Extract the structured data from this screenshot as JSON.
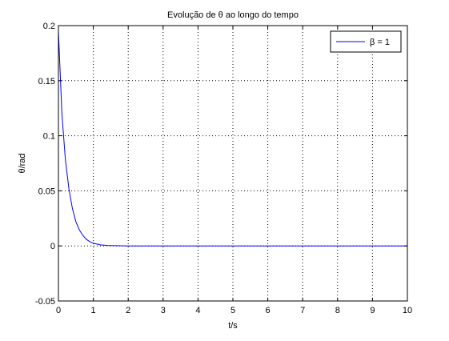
{
  "chart_data": {
    "type": "line",
    "title": "Evolução de θ ao longo do tempo",
    "xlabel": "t/s",
    "ylabel": "θ/rad",
    "xlim": [
      0,
      10
    ],
    "ylim": [
      -0.05,
      0.2
    ],
    "xticks": [
      0,
      1,
      2,
      3,
      4,
      5,
      6,
      7,
      8,
      9,
      10
    ],
    "yticks": [
      -0.05,
      0,
      0.05,
      0.1,
      0.15,
      0.2
    ],
    "ytick_labels": [
      "-0.05",
      "0",
      "0.05",
      "0.1",
      "0.15",
      "0.2"
    ],
    "grid": true,
    "grid_style": "dotted",
    "legend_position": "top-right",
    "series": [
      {
        "name": "β = 1",
        "color": "#0000ff",
        "x": [
          0,
          0.1,
          0.2,
          0.3,
          0.4,
          0.5,
          0.6,
          0.7,
          0.8,
          0.9,
          1.0,
          1.2,
          1.4,
          1.6,
          1.8,
          2.0,
          3,
          4,
          5,
          6,
          7,
          8,
          9,
          10
        ],
        "y": [
          0.195,
          0.12,
          0.078,
          0.052,
          0.034,
          0.022,
          0.0145,
          0.0095,
          0.006,
          0.0038,
          0.0024,
          0.001,
          0.0004,
          0.0002,
          0.0001,
          0,
          0,
          0,
          0,
          0,
          0,
          0,
          0,
          0
        ]
      }
    ]
  }
}
